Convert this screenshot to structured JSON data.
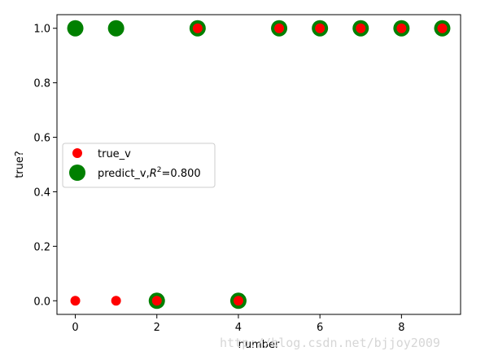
{
  "chart_data": {
    "type": "scatter",
    "xlabel": "number",
    "ylabel": "true?",
    "xlim": [
      -0.45,
      9.45
    ],
    "ylim": [
      -0.05,
      1.05
    ],
    "xticks": [
      0,
      2,
      4,
      6,
      8
    ],
    "xtick_labels": [
      "0",
      "2",
      "4",
      "6",
      "8"
    ],
    "yticks": [
      0.0,
      0.2,
      0.4,
      0.6,
      0.8,
      1.0
    ],
    "ytick_labels": [
      "0.0",
      "0.2",
      "0.4",
      "0.6",
      "0.8",
      "1.0"
    ],
    "legend_position": "center-left",
    "series": [
      {
        "name": "predict_v",
        "legend_label_prefix": "predict_v,",
        "legend_label_r": "R",
        "legend_label_sup": "2",
        "legend_label_suffix": "=0.800",
        "color": "#008000",
        "marker": "large-circle",
        "x": [
          0,
          1,
          2,
          3,
          4,
          5,
          6,
          7,
          8,
          9
        ],
        "y": [
          1,
          1,
          0,
          1,
          0,
          1,
          1,
          1,
          1,
          1
        ]
      },
      {
        "name": "true_v",
        "color": "#ff0000",
        "marker": "small-circle",
        "x": [
          0,
          1,
          2,
          3,
          4,
          5,
          6,
          7,
          8,
          9
        ],
        "y": [
          0,
          0,
          0,
          1,
          0,
          1,
          1,
          1,
          1,
          1
        ]
      }
    ]
  },
  "watermark_text": "http://blog.csdn.net/bjjoy2009"
}
